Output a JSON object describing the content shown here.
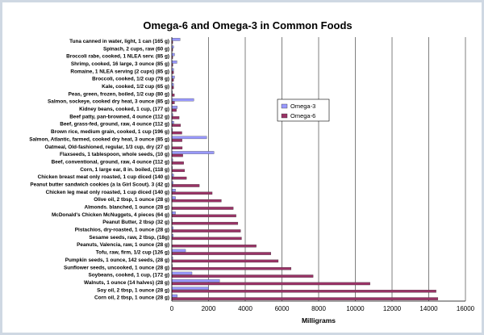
{
  "chart_data": {
    "type": "bar",
    "orientation": "horizontal",
    "title": "Omega-6 and Omega-3 in Common Foods",
    "xlabel": "Milligrams",
    "ylabel": "",
    "xlim": [
      0,
      16000
    ],
    "xticks": [
      0,
      2000,
      4000,
      6000,
      8000,
      10000,
      12000,
      14000,
      16000
    ],
    "grid": "vertical",
    "legend": "right-upper",
    "colors": {
      "omega3": "#9999ff",
      "omega6": "#993366"
    },
    "categories": [
      "Tuna canned in water, light, 1 can (165 g)",
      "Spinach, 2 cups, raw (60 g)",
      "Broccoli rabe, cooked, 1 NLEA serv. (85 g)",
      "Shrimp, cooked, 16 large, 3 ounce (85 g)",
      "Romaine, 1 NLEA serving (2 cups) (85 g)",
      "Broccoli, cooked, 1/2 cup (78 g)",
      "Kale, cooked, 1/2 cup (65 g)",
      "Peas, green, frozen, boiled, 1/2 cup (80 g)",
      "Salmon, sockeye, cooked dry heat, 3 ounce (85 g)",
      "Kidney beans, cooked, 1 cup, (177 g)",
      "Beef patty, pan-browned, 4 ounce (112 g)",
      "Beef, grass-fed, ground, raw, 4 ounce (112 g)",
      "Brown rice, medium grain, cooked, 1 cup (196 g)",
      "Salmon, Atlantic, farmed, cooked dry heat, 3 ounce (85 g)",
      "Oatmeal, Old-fashioned, regular, 1/3 cup, dry (27 g)",
      "Flaxseeds, 1 tablespoon, whole seeds, (10 g)",
      "Beef, conventional, ground, raw, 4 ounce (112 g)",
      "Corn, 1 large ear, 8 in. boiled, (118 g)",
      "Chicken breast meat only roasted, 1 cup diced (140 g)",
      "Peanut butter sandwich cookies (a la Girl Scout). 3 (42 g)",
      "Chicken leg meat only roasted, 1 cup diced (140 g)",
      "Olive oil, 2 tbsp, 1 ounce (28 g)",
      "Almonds. blanched, 1 ounce (28 g)",
      "McDonald's Chicken McNuggets, 4 pieces (64 g)",
      "Peanut Butter, 2 tbsp (32 g)",
      "Pistachios, dry-roasted, 1 ounce (28 g)",
      "Sesame seeds, raw, 2 tbsp, (18g)",
      "Peanuts, Valencia, raw, 1 ounce (28 g)",
      "Tofu, raw, firm, 1/2 cup (126 g)",
      "Pumpkin seeds, 1 ounce, 142 seeds, (28 g)",
      "Sunflower seeds, uncooked, 1 ounce (28 g)",
      "Soybeans, cooked, 1 cup, (172 g)",
      "Walnuts, 1 ounce (14 halves) (28 g)",
      "Soy oil, 2 tbsp, 1 ounce (28 g)",
      "Corn oil, 2 tbsp, 1 ounce (28 g)"
    ],
    "series": [
      {
        "name": "Omega-3",
        "values": [
          450,
          100,
          150,
          280,
          100,
          150,
          100,
          40,
          1200,
          300,
          60,
          110,
          40,
          1900,
          20,
          2300,
          50,
          30,
          100,
          70,
          200,
          200,
          0,
          200,
          30,
          70,
          70,
          0,
          750,
          50,
          30,
          1100,
          2600,
          2000,
          300
        ]
      },
      {
        "name": "Omega-6",
        "values": [
          50,
          50,
          50,
          60,
          100,
          100,
          100,
          140,
          150,
          250,
          400,
          480,
          550,
          560,
          570,
          600,
          650,
          700,
          800,
          1500,
          2200,
          2700,
          3350,
          3500,
          3600,
          3750,
          3800,
          4600,
          5400,
          5800,
          6500,
          7700,
          10800,
          14400,
          14500
        ]
      }
    ]
  }
}
